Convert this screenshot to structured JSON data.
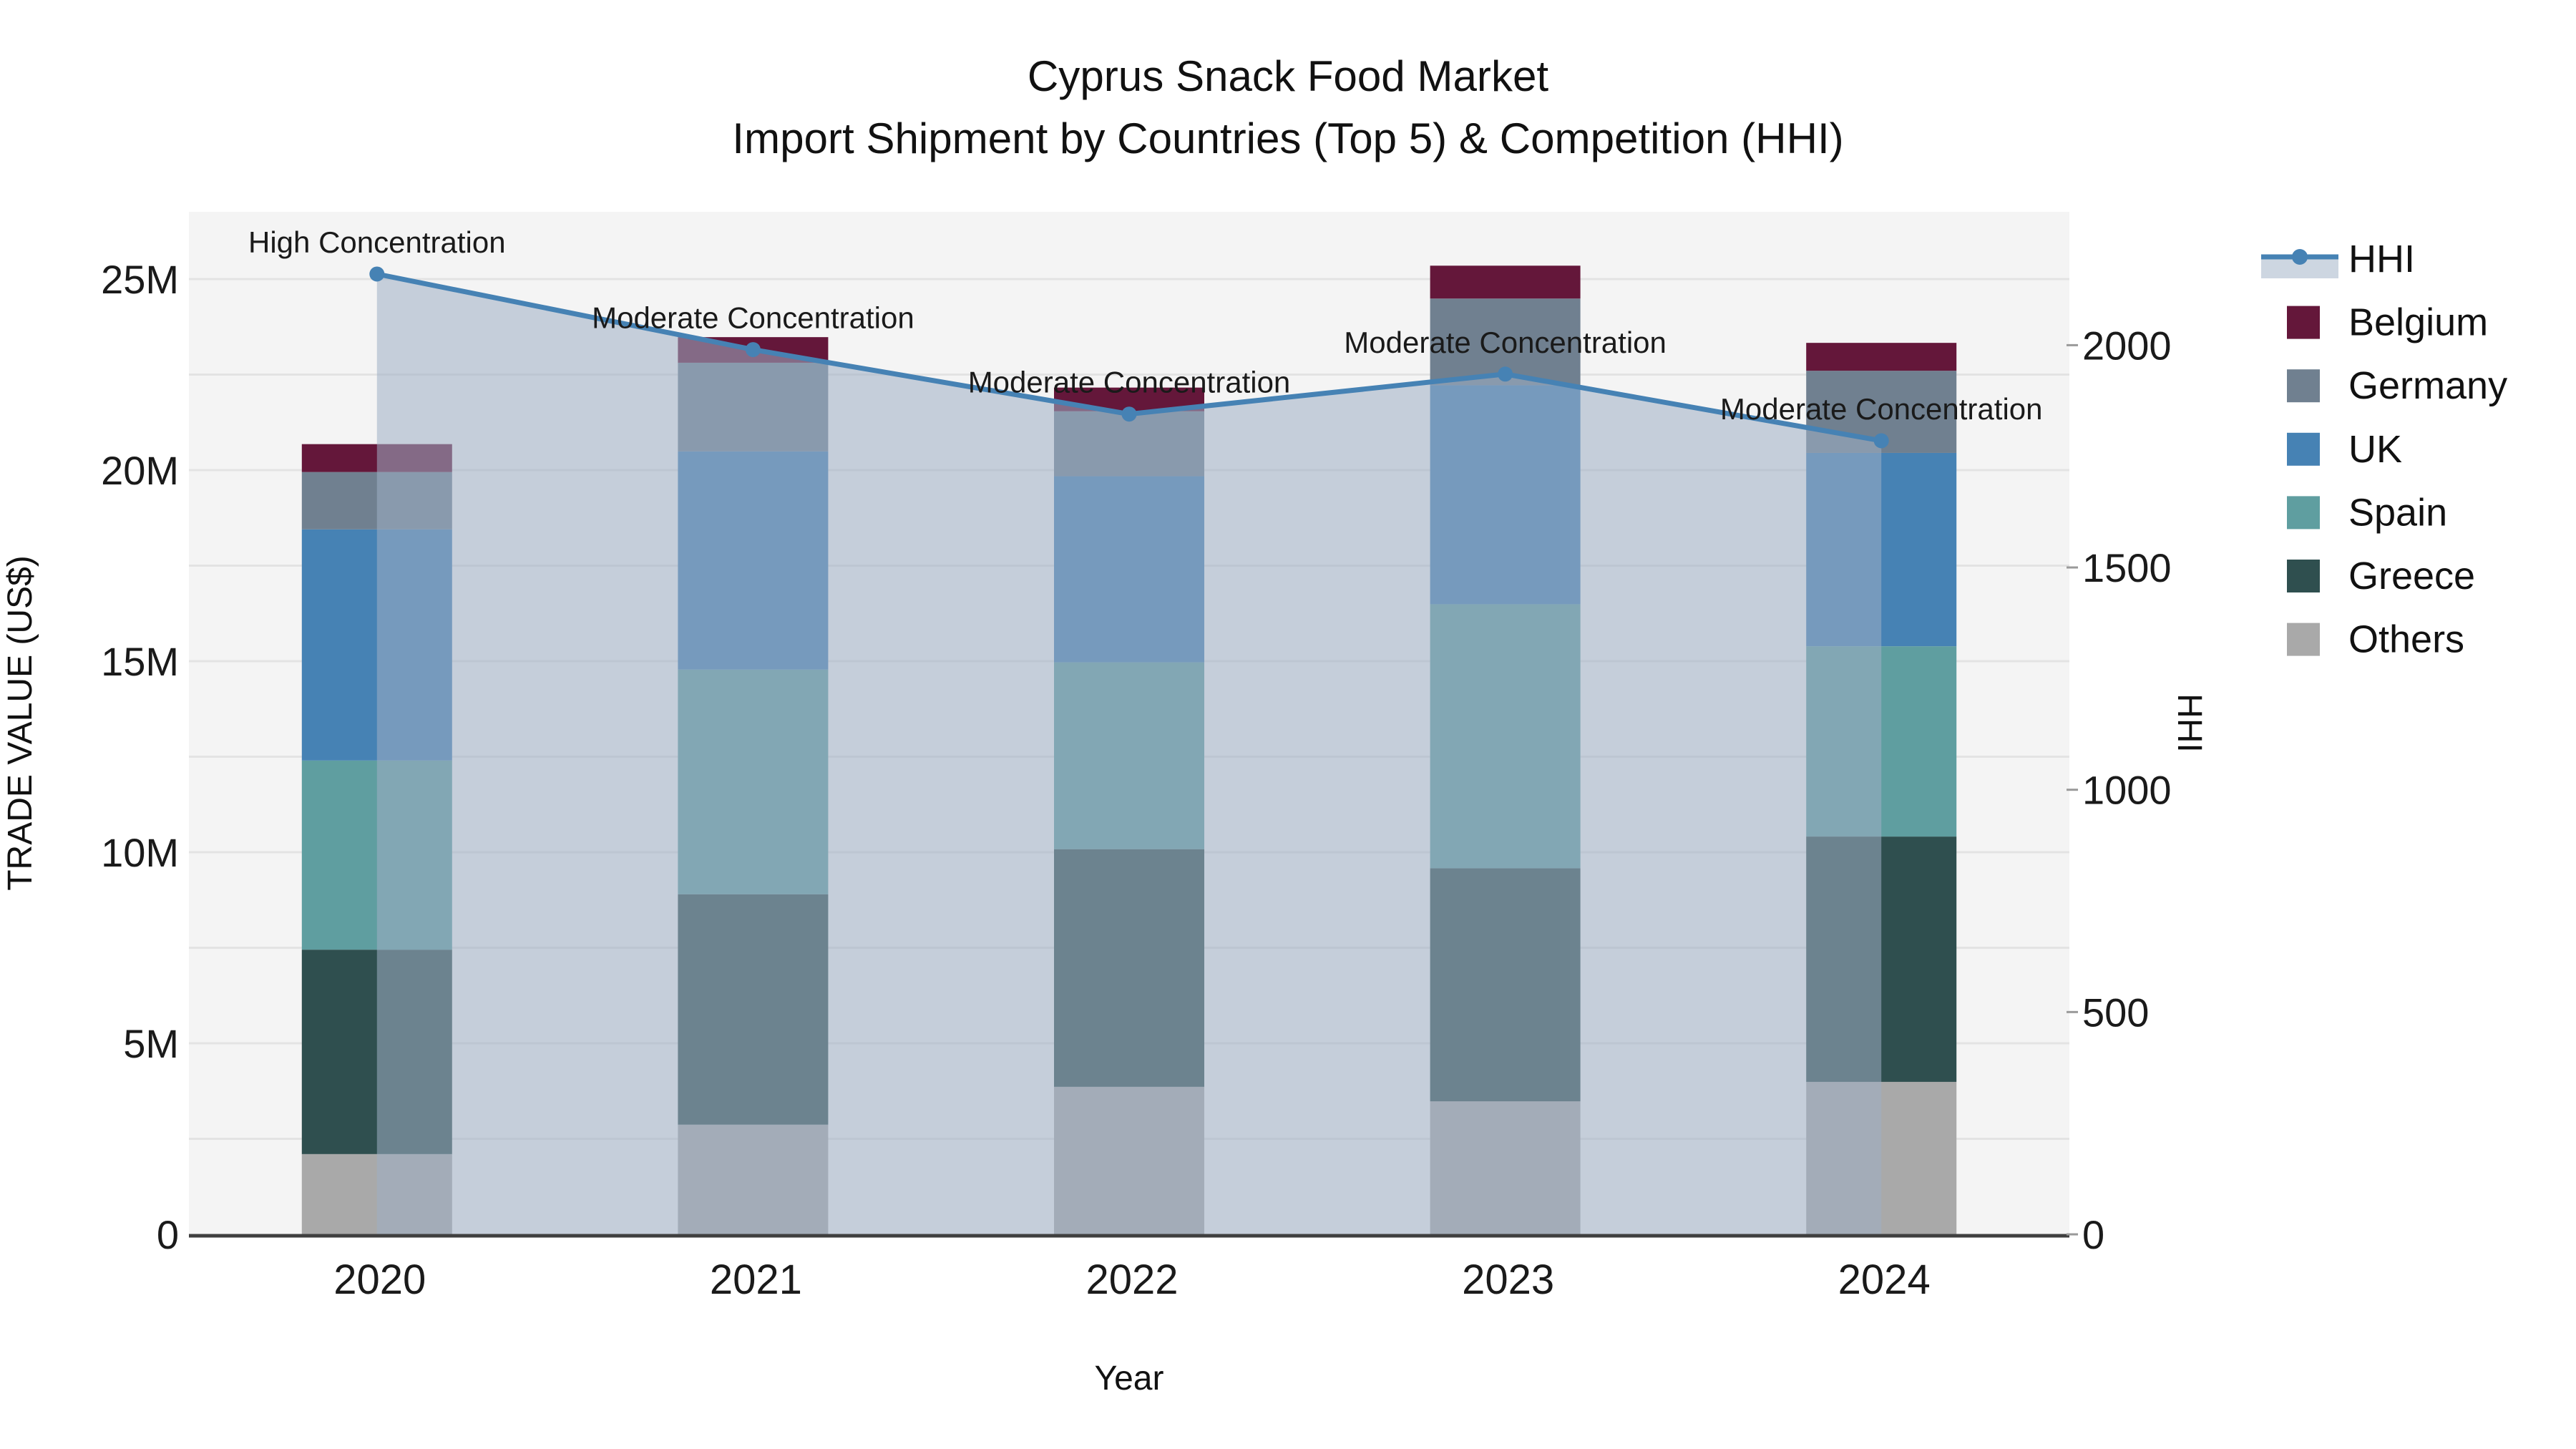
{
  "title": {
    "line1": "Cyprus Snack Food Market",
    "line2": "Import Shipment by Countries (Top 5) & Competition (HHI)"
  },
  "axes": {
    "x": {
      "title": "Year"
    },
    "y_left": {
      "title": "TRADE VALUE (US$)",
      "tick_labels": [
        "0",
        "5M",
        "10M",
        "15M",
        "20M",
        "25M"
      ],
      "tick_values": [
        0,
        5,
        10,
        15,
        20,
        25
      ],
      "max": 26.76,
      "grid_step": 2.5
    },
    "y_right": {
      "title": "HHI",
      "tick_labels": [
        "0",
        "500",
        "1000",
        "1500",
        "2000"
      ],
      "tick_values": [
        0,
        500,
        1000,
        1500,
        2000
      ],
      "max": 2300
    }
  },
  "legend": {
    "items": [
      {
        "label": "HHI",
        "type": "line",
        "color": "#4682b4"
      },
      {
        "label": "Belgium",
        "type": "swatch",
        "color": "#64173a"
      },
      {
        "label": "Germany",
        "type": "swatch",
        "color": "#708090"
      },
      {
        "label": "UK",
        "type": "swatch",
        "color": "#4682b4"
      },
      {
        "label": "Spain",
        "type": "swatch",
        "color": "#5f9ea0"
      },
      {
        "label": "Greece",
        "type": "swatch",
        "color": "#2f4f4f"
      },
      {
        "label": "Others",
        "type": "swatch",
        "color": "#a9a9a9"
      }
    ]
  },
  "chart_data": {
    "type": "combo: stacked bar (left axis, trade value US$ millions) + line with shaded area (right axis, HHI)",
    "categories": [
      "2020",
      "2021",
      "2022",
      "2023",
      "2024"
    ],
    "series": [
      {
        "name": "Others",
        "color": "#a9a9a9",
        "values": [
          2.1,
          2.87,
          3.86,
          3.48,
          3.99
        ]
      },
      {
        "name": "Greece",
        "color": "#2f4f4f",
        "values": [
          5.35,
          6.03,
          6.22,
          6.1,
          6.42
        ]
      },
      {
        "name": "Spain",
        "color": "#5f9ea0",
        "values": [
          4.95,
          5.88,
          4.89,
          6.91,
          4.98
        ]
      },
      {
        "name": "UK",
        "color": "#4682b4",
        "values": [
          6.05,
          5.71,
          4.87,
          5.73,
          5.06
        ]
      },
      {
        "name": "Germany",
        "color": "#708090",
        "values": [
          1.5,
          2.32,
          1.7,
          2.27,
          2.15
        ]
      },
      {
        "name": "Belgium",
        "color": "#64173a",
        "values": [
          0.73,
          0.67,
          0.62,
          0.86,
          0.73
        ]
      }
    ],
    "bar_totals_musd": [
      20.68,
      23.48,
      22.16,
      25.35,
      23.33
    ],
    "line_series": {
      "name": "HHI",
      "axis": "right",
      "color": "#4682b4",
      "band_fill": "rgba(158,174,196,0.55)",
      "values": [
        2160,
        1990,
        1845,
        1935,
        1785
      ]
    },
    "annotations": [
      {
        "category": "2020",
        "text": "High Concentration"
      },
      {
        "category": "2021",
        "text": "Moderate Concentration"
      },
      {
        "category": "2022",
        "text": "Moderate Concentration"
      },
      {
        "category": "2023",
        "text": "Moderate Concentration"
      },
      {
        "category": "2024",
        "text": "Moderate Concentration"
      }
    ],
    "layout_hints": {
      "legend_position": "right",
      "grid": "horizontal only",
      "ylim_left": [
        0,
        26.76
      ],
      "ylim_right": [
        0,
        2300
      ]
    }
  },
  "colors": {
    "plot_bg": "#f4f4f4",
    "grid": "#e3e3e3",
    "axis_line": "#3f3f3f",
    "text": "#111111",
    "tick_text": "#1a1a1a",
    "legend_band": "#cdd6e1"
  }
}
